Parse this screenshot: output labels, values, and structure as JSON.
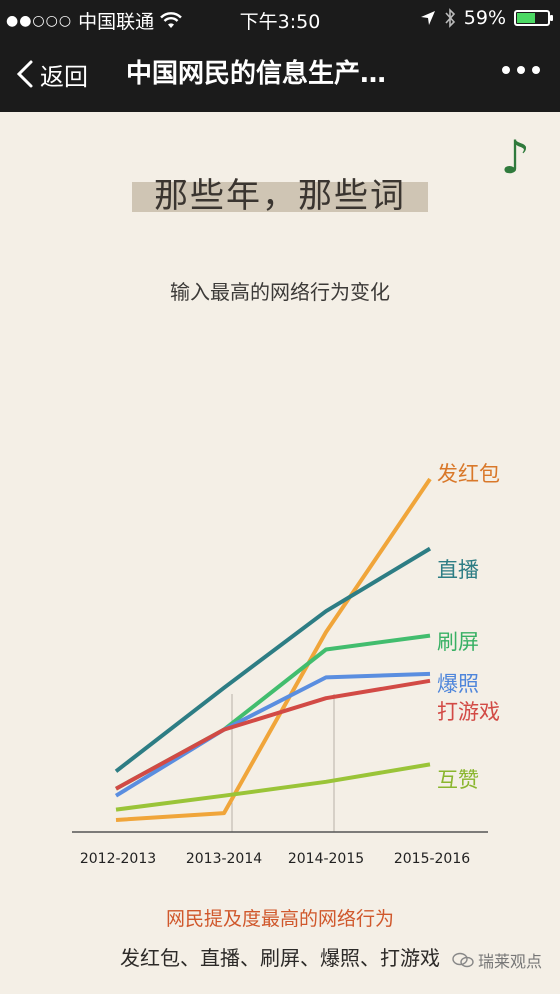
{
  "status_bar": {
    "carrier": "中国联通",
    "time": "下午3:50",
    "battery": "59%",
    "battery_level": 0.59,
    "icons": [
      "signal-dots-icon",
      "wifi-icon",
      "location-arrow-icon",
      "bluetooth-icon",
      "battery-icon"
    ]
  },
  "nav": {
    "back_label": "返回",
    "title": "中国网民的信息生产…",
    "icons": [
      "chevron-left-icon",
      "more-icon"
    ]
  },
  "article": {
    "headline": "那些年，那些词",
    "music_icon": "music-note-icon",
    "footer_title": "网民提及度最高的网络行为",
    "footer_list": "发红包、直播、刷屏、爆照、打游戏",
    "watermark": "瑞莱观点"
  },
  "chart_data": {
    "type": "line",
    "title": "输入最高的网络行为变化",
    "categories": [
      "2012-2013",
      "2013-2014",
      "2014-2015",
      "2015-2016"
    ],
    "series": [
      {
        "name": "发红包",
        "color": "#f0a53a",
        "label_color": "#d9782a",
        "values": [
          0.02,
          0.04,
          0.56,
          1.0
        ]
      },
      {
        "name": "直播",
        "color": "#2d7d84",
        "label_color": "#2d7d84",
        "values": [
          0.16,
          0.4,
          0.62,
          0.8
        ]
      },
      {
        "name": "刷屏",
        "color": "#42bd6e",
        "label_color": "#38b064",
        "values": [
          0.11,
          0.28,
          0.51,
          0.55
        ]
      },
      {
        "name": "爆照",
        "color": "#5a8ee0",
        "label_color": "#4f86db",
        "values": [
          0.09,
          0.28,
          0.43,
          0.44
        ]
      },
      {
        "name": "打游戏",
        "color": "#d24a45",
        "label_color": "#d24a45",
        "values": [
          0.11,
          0.28,
          0.37,
          0.42
        ]
      },
      {
        "name": "互赞",
        "color": "#9ac438",
        "label_color": "#8ab62e",
        "values": [
          0.05,
          0.09,
          0.13,
          0.18
        ]
      }
    ],
    "ylim": [
      0,
      1
    ],
    "grid": "vertical-dividers"
  }
}
